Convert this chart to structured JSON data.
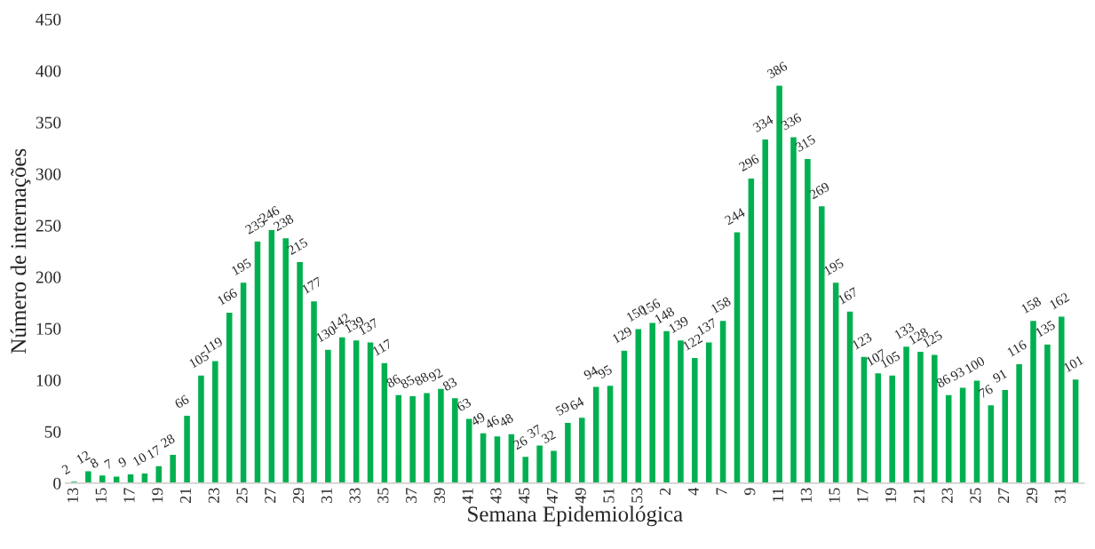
{
  "chart_data": {
    "type": "bar",
    "xlabel": "Semana Epidemiológica",
    "ylabel": "Número de internações",
    "categories": [
      "13",
      null,
      "15",
      null,
      "17",
      null,
      "19",
      null,
      "21",
      null,
      "23",
      null,
      "25",
      null,
      "27",
      null,
      "29",
      null,
      "31",
      null,
      "33",
      null,
      "35",
      null,
      "37",
      null,
      "39",
      null,
      "41",
      null,
      "43",
      null,
      "45",
      null,
      "47",
      null,
      "49",
      null,
      "51",
      null,
      "53",
      null,
      "2",
      null,
      "4",
      null,
      "7",
      null,
      "9",
      null,
      "11",
      null,
      "13",
      null,
      "15",
      null,
      "17",
      null,
      "19",
      null,
      "21",
      null,
      "23",
      null,
      "25",
      null,
      "27",
      null,
      "29",
      null,
      "31",
      null
    ],
    "values": [
      2,
      12,
      8,
      7,
      9,
      10,
      17,
      28,
      66,
      105,
      119,
      166,
      195,
      235,
      246,
      238,
      215,
      177,
      130,
      142,
      139,
      137,
      117,
      86,
      85,
      88,
      92,
      83,
      63,
      49,
      46,
      48,
      26,
      37,
      32,
      59,
      64,
      94,
      95,
      129,
      150,
      156,
      148,
      139,
      122,
      137,
      158,
      244,
      296,
      334,
      386,
      336,
      315,
      269,
      195,
      167,
      123,
      107,
      105,
      133,
      128,
      125,
      86,
      93,
      100,
      76,
      91,
      116,
      158,
      135,
      162,
      101
    ],
    "color": "#00b050",
    "ylim": [
      0,
      450
    ],
    "yticks": [
      0,
      50,
      100,
      150,
      200,
      250,
      300,
      350,
      400,
      450
    ],
    "data_labels": true,
    "grid": false
  }
}
